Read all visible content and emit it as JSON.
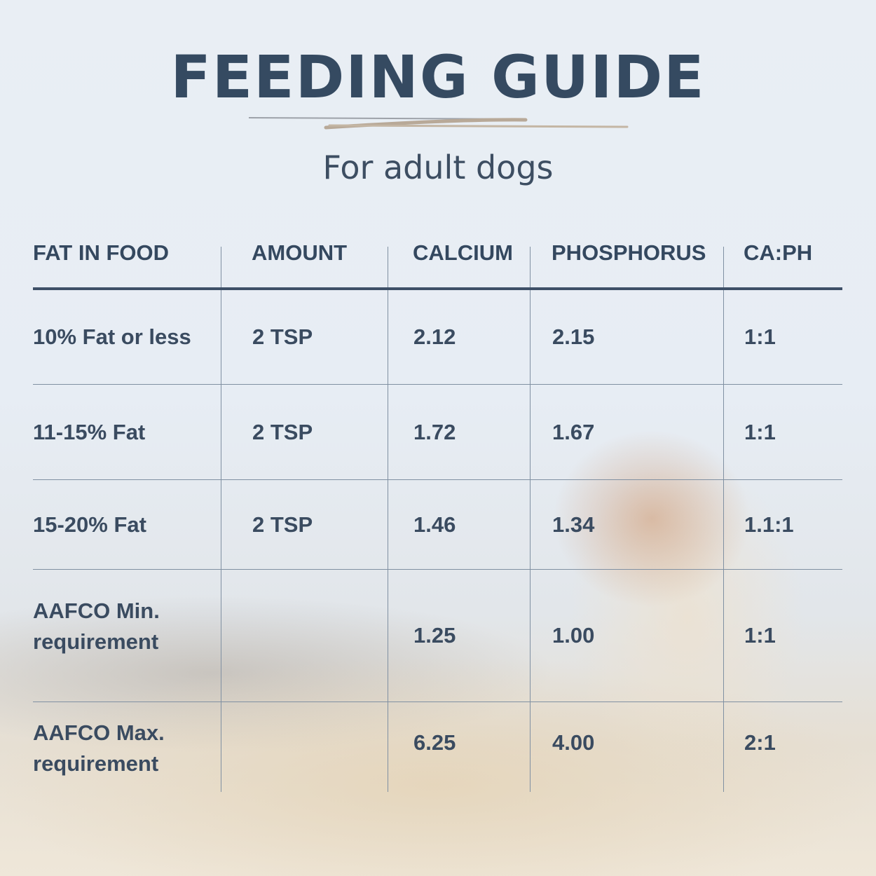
{
  "header": {
    "title": "FEEDING GUIDE",
    "subtitle": "For adult dogs"
  },
  "colors": {
    "title": "#354a61",
    "text": "#3a4b60",
    "rule": "#3e5067",
    "underline_tan": "#b8a998"
  },
  "table": {
    "columns": [
      "FAT IN FOOD",
      "AMOUNT",
      "CALCIUM",
      "PHOSPHORUS",
      "CA:PH"
    ],
    "rows": [
      [
        "10% Fat or less",
        "2 TSP",
        "2.12",
        "2.15",
        "1:1"
      ],
      [
        "11-15% Fat",
        "2 TSP",
        "1.72",
        "1.67",
        "1:1"
      ],
      [
        "15-20% Fat",
        "2 TSP",
        "1.46",
        "1.34",
        "1.1:1"
      ],
      [
        "AAFCO Min. requirement",
        "",
        "1.25",
        "1.00",
        "1:1"
      ],
      [
        "AAFCO Max. requirement",
        "",
        "6.25",
        "4.00",
        "2:1"
      ]
    ]
  }
}
